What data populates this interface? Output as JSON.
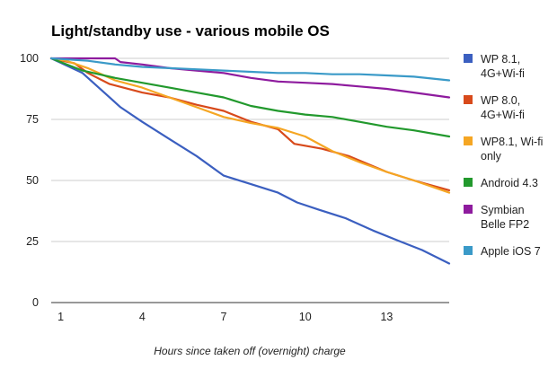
{
  "chart_data": {
    "type": "line",
    "title": "Light/standby use - various mobile OS",
    "xlabel": "Hours since taken off (overnight) charge",
    "ylabel": "",
    "xlim": [
      0.65,
      15.3
    ],
    "ylim": [
      0,
      100
    ],
    "x_ticks": [
      1,
      4,
      7,
      10,
      13
    ],
    "y_ticks": [
      0,
      25,
      50,
      75,
      100
    ],
    "grid": "horizontal",
    "legend_position": "right",
    "series": [
      {
        "name": "WP 8.1, 4G+Wi-fi",
        "legend_lines": [
          "WP 8.1,",
          "4G+Wi-fi"
        ],
        "color": "#3b5fc0",
        "points": [
          [
            0.65,
            100
          ],
          [
            1.8,
            94
          ],
          [
            2.6,
            86
          ],
          [
            3.2,
            80
          ],
          [
            4,
            74
          ],
          [
            5,
            67
          ],
          [
            6,
            60
          ],
          [
            7,
            52
          ],
          [
            8,
            48.5
          ],
          [
            9,
            45
          ],
          [
            9.7,
            41
          ],
          [
            10.5,
            38
          ],
          [
            11.5,
            34.5
          ],
          [
            12.5,
            29.5
          ],
          [
            13.5,
            25
          ],
          [
            14.3,
            21.5
          ],
          [
            15.3,
            16
          ]
        ]
      },
      {
        "name": "WP 8.0, 4G+Wi-fi",
        "legend_lines": [
          "WP 8.0,",
          "4G+Wi-fi"
        ],
        "color": "#d84a1b",
        "points": [
          [
            0.65,
            100
          ],
          [
            1.5,
            98
          ],
          [
            2,
            94
          ],
          [
            2.8,
            89.5
          ],
          [
            4,
            86
          ],
          [
            5,
            84
          ],
          [
            6,
            81
          ],
          [
            7,
            78.5
          ],
          [
            8,
            74
          ],
          [
            9,
            71
          ],
          [
            9.6,
            65
          ],
          [
            10.6,
            63
          ],
          [
            11.6,
            60
          ],
          [
            13,
            53.5
          ],
          [
            14,
            50
          ],
          [
            15.3,
            46
          ]
        ]
      },
      {
        "name": "WP8.1, Wi-fi only",
        "legend_lines": [
          "WP8.1, Wi-fi",
          "only"
        ],
        "color": "#f5a623",
        "points": [
          [
            0.65,
            100
          ],
          [
            1.2,
            99
          ],
          [
            2,
            96
          ],
          [
            3,
            91
          ],
          [
            4,
            88
          ],
          [
            5,
            84
          ],
          [
            6,
            80
          ],
          [
            7,
            76
          ],
          [
            8,
            73.5
          ],
          [
            9,
            71.5
          ],
          [
            10,
            68
          ],
          [
            11,
            62
          ],
          [
            12,
            57.5
          ],
          [
            13,
            53.5
          ],
          [
            14,
            50
          ],
          [
            15.3,
            45
          ]
        ]
      },
      {
        "name": "Android 4.3",
        "legend_lines": [
          "Android 4.3"
        ],
        "color": "#22992d",
        "points": [
          [
            0.65,
            100
          ],
          [
            1.8,
            95
          ],
          [
            3,
            92
          ],
          [
            4,
            90
          ],
          [
            5,
            88
          ],
          [
            6,
            86
          ],
          [
            7,
            84
          ],
          [
            8,
            80.5
          ],
          [
            9,
            78.5
          ],
          [
            10,
            77
          ],
          [
            11,
            76
          ],
          [
            12,
            74
          ],
          [
            13,
            72
          ],
          [
            14,
            70.5
          ],
          [
            15.3,
            68
          ]
        ]
      },
      {
        "name": "Symbian Belle FP2",
        "legend_lines": [
          "Symbian",
          "Belle FP2"
        ],
        "color": "#8e1b9e",
        "points": [
          [
            0.65,
            100
          ],
          [
            3,
            100
          ],
          [
            3.2,
            98.5
          ],
          [
            4,
            97.5
          ],
          [
            5,
            96
          ],
          [
            6,
            95
          ],
          [
            7,
            94
          ],
          [
            8,
            92
          ],
          [
            9,
            90.5
          ],
          [
            10,
            90
          ],
          [
            11,
            89.5
          ],
          [
            12,
            88.5
          ],
          [
            13,
            87.5
          ],
          [
            14,
            86
          ],
          [
            15.3,
            84
          ]
        ]
      },
      {
        "name": "Apple iOS 7",
        "legend_lines": [
          "Apple iOS 7"
        ],
        "color": "#3a9ac8",
        "points": [
          [
            0.65,
            100
          ],
          [
            2,
            99
          ],
          [
            3,
            97.5
          ],
          [
            4,
            96.5
          ],
          [
            5,
            96
          ],
          [
            6,
            95.5
          ],
          [
            7,
            95
          ],
          [
            8,
            94.5
          ],
          [
            9,
            94
          ],
          [
            10,
            94
          ],
          [
            11,
            93.5
          ],
          [
            12,
            93.5
          ],
          [
            13,
            93
          ],
          [
            14,
            92.5
          ],
          [
            15.3,
            91
          ]
        ]
      }
    ]
  }
}
